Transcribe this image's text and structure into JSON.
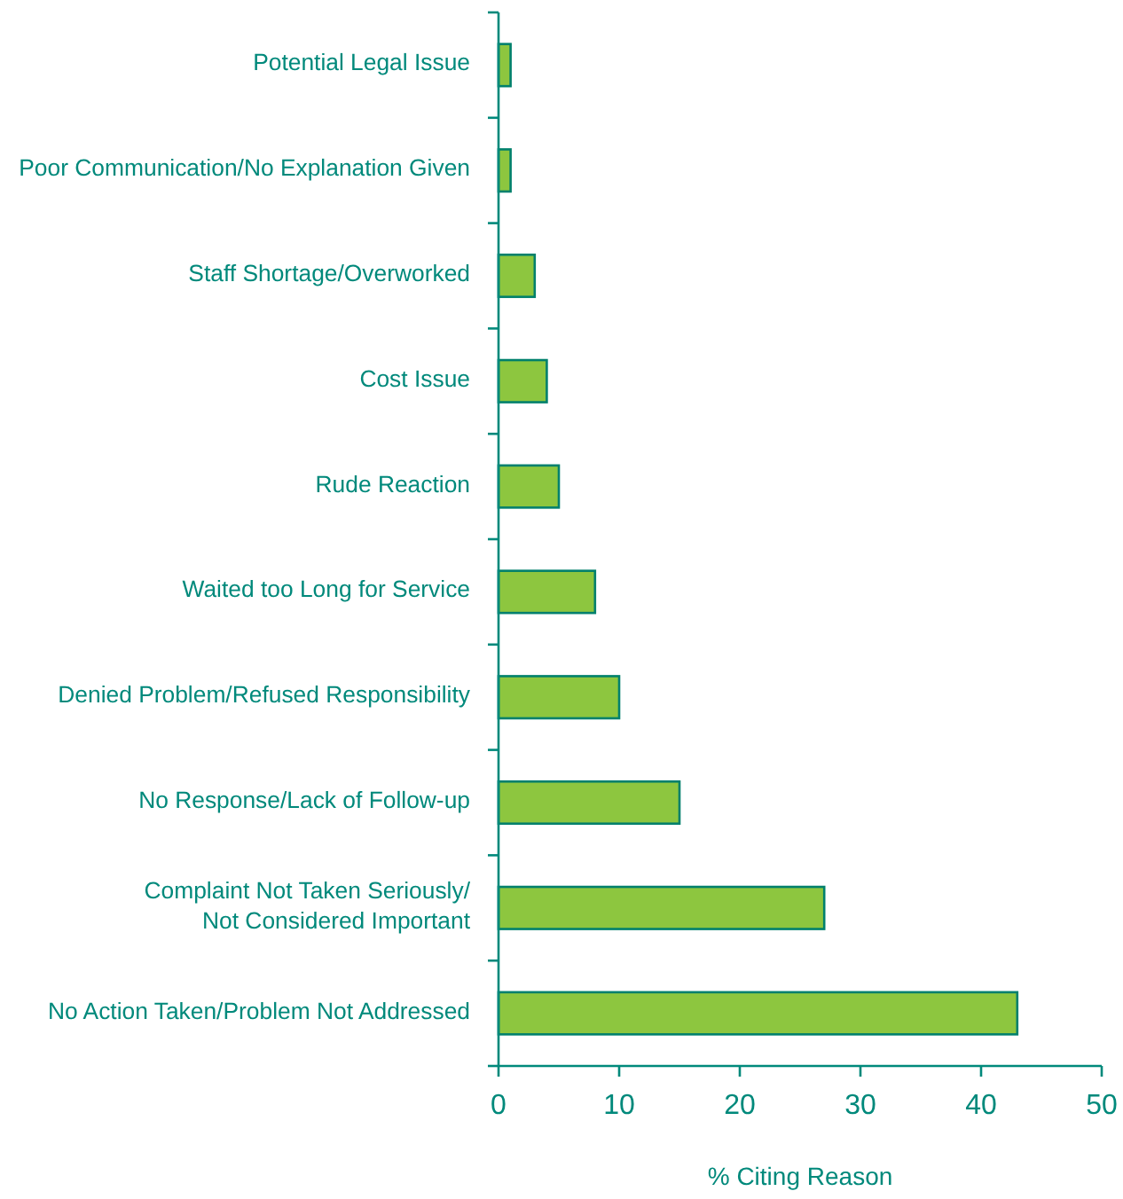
{
  "chart_data": {
    "type": "bar",
    "orientation": "horizontal",
    "xlabel": "% Citing Reason",
    "categories": [
      "Potential Legal Issue",
      "Poor Communication/No Explanation Given",
      "Staff Shortage/Overworked",
      "Cost Issue",
      "Rude Reaction",
      "Waited too Long for Service",
      "Denied Problem/Refused Responsibility",
      "No Response/Lack of Follow-up",
      "Complaint Not Taken Seriously/\nNot Considered Important",
      "No Action Taken/Problem Not Addressed"
    ],
    "values": [
      1,
      1,
      3,
      4,
      5,
      8,
      10,
      15,
      27,
      43
    ],
    "color": "#8dc63f",
    "xlim": [
      0,
      50
    ],
    "xticks": [
      0,
      10,
      20,
      30,
      40,
      50
    ],
    "grid": false
  }
}
